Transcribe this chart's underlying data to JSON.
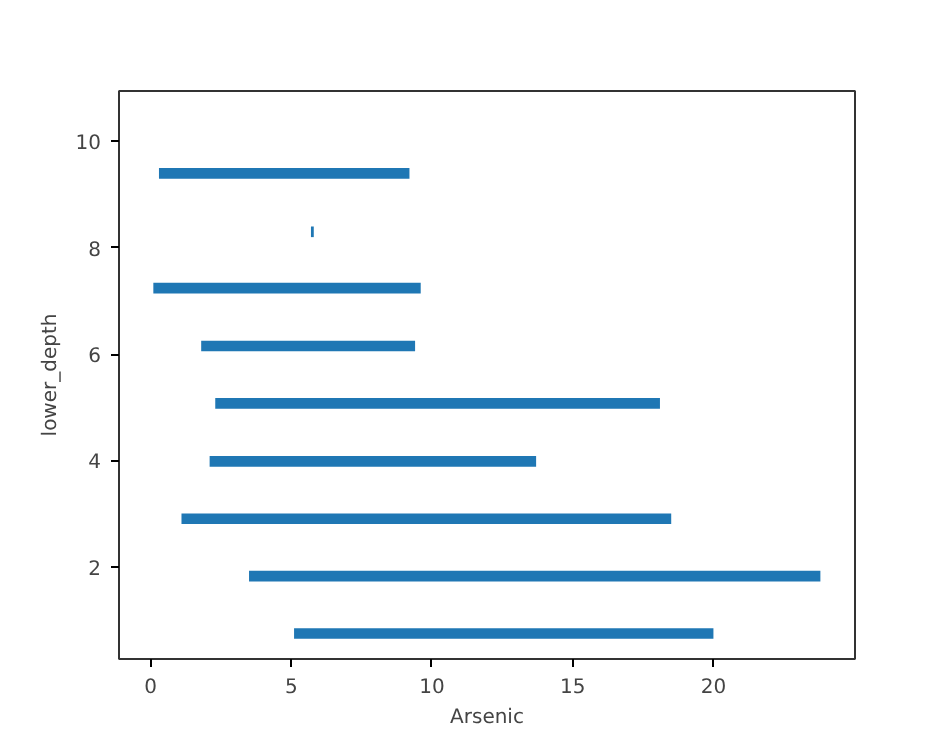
{
  "chart_data": {
    "type": "bar",
    "orientation": "horizontal",
    "xlabel": "Arsenic",
    "ylabel": "lower_depth",
    "x": [
      0.74,
      1.82,
      2.9,
      3.98,
      5.07,
      6.15,
      7.24,
      8.3,
      9.4
    ],
    "base": [
      5.1,
      3.5,
      1.1,
      2.1,
      2.3,
      1.8,
      0.1,
      5.7,
      0.3
    ],
    "values": [
      14.9,
      20.3,
      17.4,
      11.6,
      15.8,
      7.6,
      9.5,
      0.1,
      8.9
    ],
    "color": "#1f77b4",
    "xlim": [
      -1.12,
      25.03
    ],
    "xticks": [
      0,
      5,
      10,
      15,
      20
    ],
    "ylim": [
      0.26,
      10.95
    ],
    "yticks": [
      2,
      4,
      6,
      8,
      10
    ],
    "grid": false
  }
}
